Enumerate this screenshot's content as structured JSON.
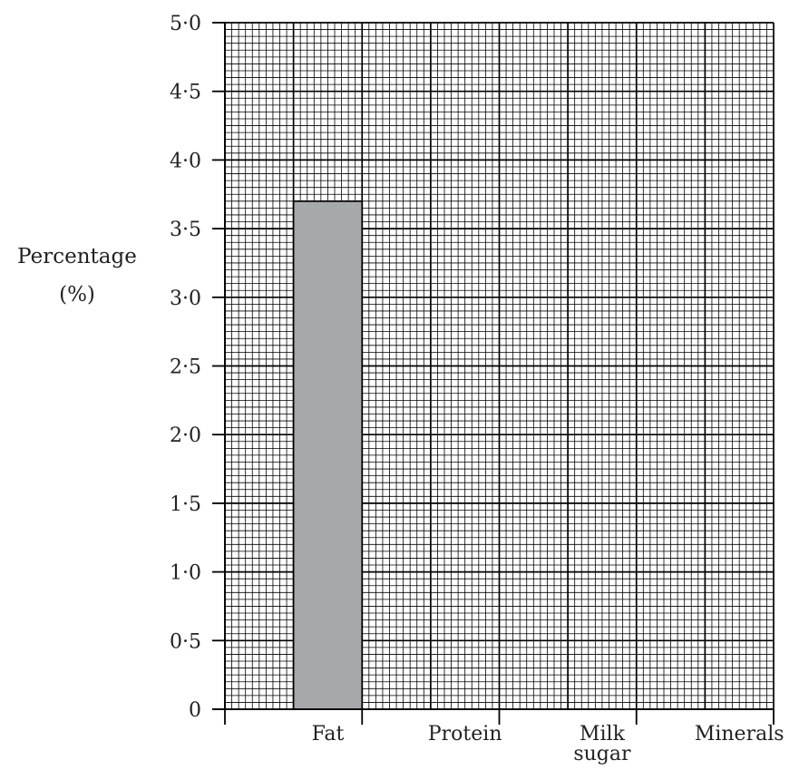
{
  "chart_data": {
    "type": "bar",
    "title": "",
    "ylabel": "Percentage",
    "ylabel_unit": "(%)",
    "xlabel": "",
    "categories": [
      "Fat",
      "Protein",
      "Milk sugar",
      "Minerals"
    ],
    "category_label_lines": [
      [
        "Fat"
      ],
      [
        "Protein"
      ],
      [
        "Milk",
        "sugar"
      ],
      [
        "Minerals"
      ]
    ],
    "series": [
      {
        "values": [
          3.7,
          null,
          null,
          null
        ]
      }
    ],
    "ylim": [
      0,
      5.0
    ],
    "yticks": [
      0,
      0.5,
      1.0,
      1.5,
      2.0,
      2.5,
      3.0,
      3.5,
      4.0,
      4.5,
      5.0
    ],
    "ytick_labels": [
      "0",
      "0·5",
      "1·0",
      "1·5",
      "2·0",
      "2·5",
      "3·0",
      "3·5",
      "4·0",
      "4·5",
      "5·0"
    ],
    "grid": true,
    "bar_color": "#a7a8ab",
    "grid_color": "#000000"
  }
}
